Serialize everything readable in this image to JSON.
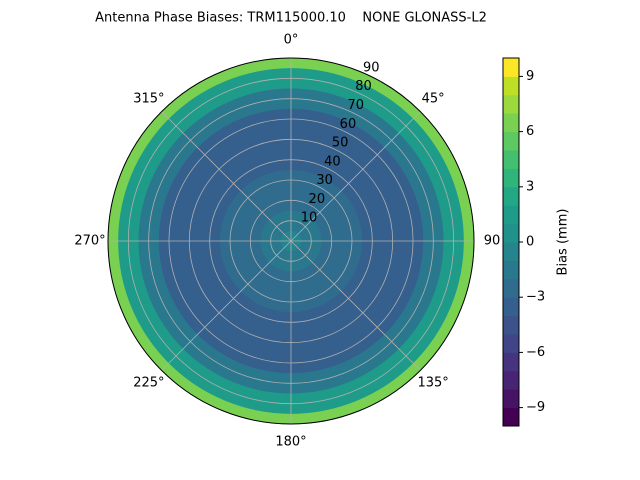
{
  "chart_data": {
    "type": "polar-contour",
    "title": "Antenna Phase Biases: TRM115000.10    NONE GLONASS-L2",
    "r": [
      0,
      10,
      20,
      30,
      40,
      50,
      60,
      70,
      80,
      90
    ],
    "values": [
      -1,
      -1.5,
      -2.5,
      -3,
      -3.5,
      -3.8,
      -3.5,
      -2,
      1.5,
      6
    ],
    "rlim": [
      0,
      90
    ],
    "rticks": [
      10,
      20,
      30,
      40,
      50,
      60,
      70,
      80,
      90
    ],
    "thetaticks": [
      {
        "value": 0,
        "label": "0°"
      },
      {
        "value": 45,
        "label": "45°"
      },
      {
        "value": 90,
        "label": "90"
      },
      {
        "value": 135,
        "label": "135°"
      },
      {
        "value": 180,
        "label": "180°"
      },
      {
        "value": 225,
        "label": "225°"
      },
      {
        "value": 270,
        "label": "270°"
      },
      {
        "value": 315,
        "label": "315°"
      }
    ],
    "grid": true,
    "colorbar_label": "Bias (mm)",
    "clim": [
      -10,
      10
    ],
    "cticks": [
      {
        "value": -9,
        "label": "−9"
      },
      {
        "value": -6,
        "label": "−6"
      },
      {
        "value": -3,
        "label": "−3"
      },
      0,
      3,
      6,
      9
    ],
    "colors": [
      "#440154",
      "#471365",
      "#482475",
      "#463480",
      "#414487",
      "#3b528b",
      "#355f8d",
      "#2f6c8e",
      "#2a788e",
      "#25848e",
      "#21918c",
      "#1e9c89",
      "#22a884",
      "#2fb47c",
      "#44bf70",
      "#5ec962",
      "#7ad151",
      "#9bd93c",
      "#bddf26",
      "#fde725"
    ]
  }
}
